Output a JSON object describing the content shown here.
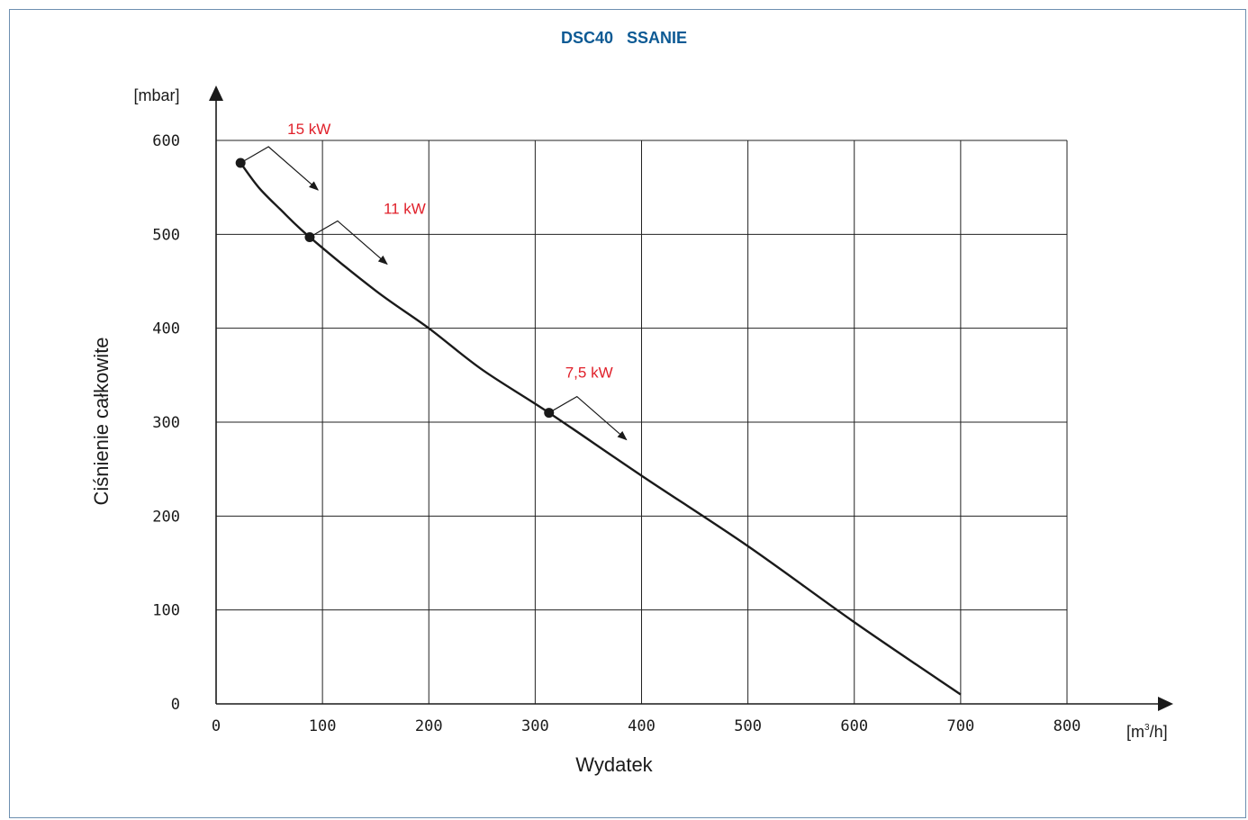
{
  "colors": {
    "title": "#0d5a94",
    "annotation": "#e0202a",
    "line": "#1a1a1a",
    "grid": "#222222",
    "frame": "#6d8fb0"
  },
  "chart_data": {
    "type": "line",
    "title": "DSC40   SSANIE",
    "xlabel": "Wydatek",
    "ylabel": "Ciśnienie całkowite",
    "x_unit_base": "[m",
    "x_unit_sup": "3",
    "x_unit_tail": "/h]",
    "y_unit": "[mbar]",
    "xlim": [
      0,
      800
    ],
    "ylim": [
      0,
      600
    ],
    "x_ticks": [
      "0",
      "100",
      "200",
      "300",
      "400",
      "500",
      "600",
      "700",
      "800"
    ],
    "y_ticks": [
      "0",
      "100",
      "200",
      "300",
      "400",
      "500",
      "600"
    ],
    "grid": true,
    "series": [
      {
        "x": [
          23,
          40,
          60,
          88,
          150,
          200,
          250,
          313,
          400,
          500,
          600,
          700
        ],
        "y": [
          576,
          550,
          527,
          497,
          440,
          400,
          356,
          310,
          243,
          168,
          87,
          10
        ]
      }
    ],
    "markers": [
      {
        "x": 23,
        "y": 576
      },
      {
        "x": 88,
        "y": 497
      },
      {
        "x": 313,
        "y": 310
      }
    ],
    "annotations": [
      {
        "label": "15 kW"
      },
      {
        "label": "11 kW"
      },
      {
        "label": "7,5 kW"
      }
    ]
  }
}
